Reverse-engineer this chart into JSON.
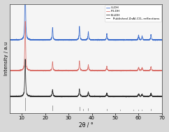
{
  "title": "",
  "xlabel": "2θ / °",
  "ylabel": "Intensity / a.u",
  "xlim": [
    5,
    70
  ],
  "legend_labels": [
    "I-LDH",
    "P-LDH",
    "B-LDH",
    "  Published ZnAl-CO₃ reflections"
  ],
  "colors": [
    "#3a6bcc",
    "#d9706a",
    "#2a2a2a",
    "#888888"
  ],
  "ldh_peaks": [
    11.5,
    23.2,
    34.7,
    38.5,
    46.4,
    60.0,
    61.5,
    65.3
  ],
  "ldh_intensities": [
    1.0,
    0.18,
    0.2,
    0.12,
    0.09,
    0.07,
    0.06,
    0.08
  ],
  "published_peaks": [
    11.5,
    23.0,
    34.7,
    36.2,
    38.5,
    46.4,
    52.0,
    57.8,
    60.0,
    61.5,
    65.3
  ],
  "pub_heights": [
    0.2,
    0.09,
    0.07,
    0.04,
    0.05,
    0.04,
    0.03,
    0.03,
    0.03,
    0.03,
    0.04
  ],
  "off_i": 1.05,
  "off_p": 0.6,
  "off_b": 0.22,
  "background_color": "#d8d8d8",
  "plot_bg": "#f5f5f5"
}
